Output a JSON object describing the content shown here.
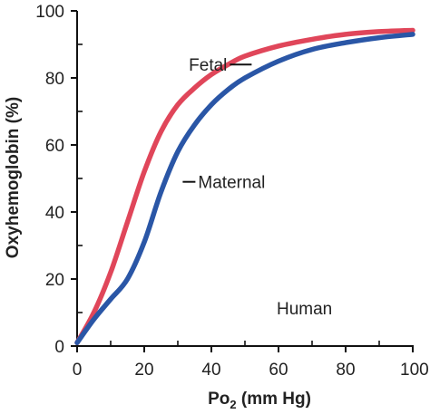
{
  "chart_data": {
    "type": "line",
    "xlabel_main": "Po",
    "xlabel_sub": "2",
    "xlabel_rest": " (mm Hg)",
    "ylabel": "Oxyhemoglobin (%)",
    "xlim": [
      0,
      100
    ],
    "ylim": [
      0,
      100
    ],
    "xticks": [
      0,
      20,
      40,
      60,
      80,
      100
    ],
    "yticks": [
      0,
      20,
      40,
      60,
      80,
      100
    ],
    "xtick_labels": [
      "0",
      "20",
      "40",
      "60",
      "80",
      "100"
    ],
    "ytick_labels": [
      "0",
      "20",
      "40",
      "60",
      "80",
      "100"
    ],
    "grid": false,
    "annotation": "Human",
    "series": [
      {
        "name": "Fetal",
        "color": "#e0465a",
        "x": [
          0,
          5,
          10,
          15,
          20,
          25,
          30,
          35,
          40,
          45,
          50,
          60,
          70,
          80,
          90,
          100
        ],
        "y": [
          1,
          10,
          22,
          37,
          52,
          64,
          72,
          77,
          81,
          84,
          86.5,
          89.5,
          91.5,
          93,
          93.8,
          94.2
        ]
      },
      {
        "name": "Maternal",
        "color": "#2a56a6",
        "x": [
          0,
          5,
          10,
          15,
          20,
          25,
          30,
          35,
          40,
          45,
          50,
          60,
          70,
          80,
          90,
          100
        ],
        "y": [
          1,
          8,
          14,
          20,
          31,
          46,
          58,
          66,
          72,
          76.5,
          80,
          85,
          88.5,
          90.5,
          92,
          93
        ]
      }
    ],
    "series_labels": {
      "Fetal": {
        "x": 52,
        "y": 84
      },
      "Maternal": {
        "x": 32,
        "y": 49
      }
    }
  }
}
